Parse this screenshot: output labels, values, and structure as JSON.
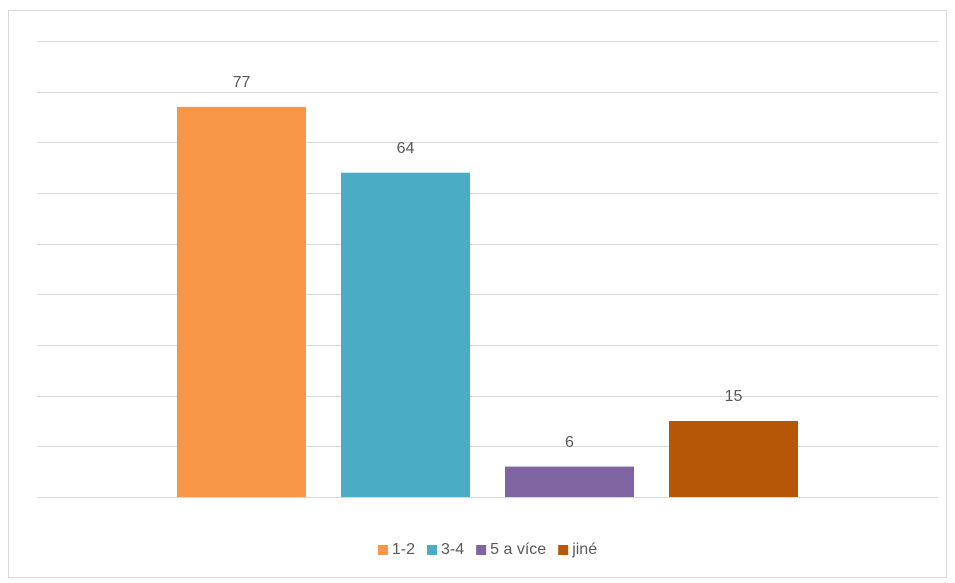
{
  "chart_data": {
    "type": "bar",
    "series": [
      {
        "name": "1-2",
        "color": "#f79646",
        "values": [
          77
        ]
      },
      {
        "name": "3-4",
        "color": "#4bacc6",
        "values": [
          64
        ]
      },
      {
        "name": "5 a více",
        "color": "#8064a2",
        "values": [
          6
        ]
      },
      {
        "name": "jiné",
        "color": "#b65708",
        "values": [
          15
        ]
      }
    ],
    "ylim": [
      0,
      90
    ],
    "yticks": [
      0,
      10,
      20,
      30,
      40,
      50,
      60,
      70,
      80,
      90
    ],
    "grid": true,
    "legend": "bottom",
    "data_labels": true
  }
}
